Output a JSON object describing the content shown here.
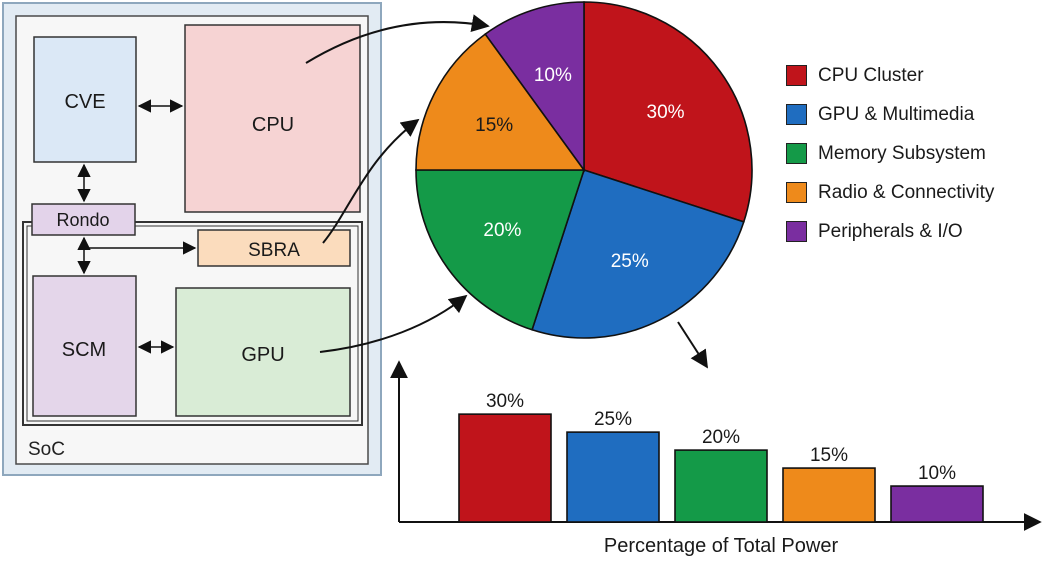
{
  "soc": {
    "label": "SoC",
    "blocks": {
      "cve": "CVE",
      "cpu": "CPU",
      "rondo": "Rondo",
      "sbra": "SBRA",
      "scm": "SCM",
      "gpu": "GPU"
    }
  },
  "colors": {
    "cpu_cluster": "#c0141b",
    "gpu_multimedia": "#1f6dc0",
    "memory_subsystem": "#149a48",
    "radio_connectivity": "#ee8a1b",
    "peripherals_io": "#7a2ea0",
    "cve_fill": "#dbe8f6",
    "cpu_fill": "#f6d3d3",
    "rondo_fill": "#e3d3ea",
    "sbra_fill": "#fbdcbd",
    "scm_fill": "#e4d6ea",
    "gpu_fill": "#d9ecd6"
  },
  "legend": [
    {
      "label": "CPU Cluster",
      "color": "#c0141b"
    },
    {
      "label": "GPU & Multimedia",
      "color": "#1f6dc0"
    },
    {
      "label": "Memory Subsystem",
      "color": "#149a48"
    },
    {
      "label": "Radio & Connectivity",
      "color": "#ee8a1b"
    },
    {
      "label": "Peripherals & I/O",
      "color": "#7a2ea0"
    }
  ],
  "chart_data": [
    {
      "type": "pie",
      "categories": [
        "CPU Cluster",
        "GPU & Multimedia",
        "Memory Subsystem",
        "Radio & Connectivity",
        "Peripherals & I/O"
      ],
      "values": [
        30,
        25,
        20,
        15,
        10
      ],
      "labels": [
        "30%",
        "25%",
        "20%",
        "15%",
        "10%"
      ],
      "colors": [
        "#c0141b",
        "#1f6dc0",
        "#149a48",
        "#ee8a1b",
        "#7a2ea0"
      ],
      "legend_position": "right"
    },
    {
      "type": "bar",
      "categories": [
        "CPU Cluster",
        "GPU & Multimedia",
        "Memory Subsystem",
        "Radio & Connectivity",
        "Peripherals & I/O"
      ],
      "values": [
        30,
        25,
        20,
        15,
        10
      ],
      "labels": [
        "30%",
        "25%",
        "20%",
        "15%",
        "10%"
      ],
      "colors": [
        "#c0141b",
        "#1f6dc0",
        "#149a48",
        "#ee8a1b",
        "#7a2ea0"
      ],
      "xlabel": "Percentage of Total Power",
      "ylim": [
        0,
        42
      ],
      "grid": false
    }
  ]
}
